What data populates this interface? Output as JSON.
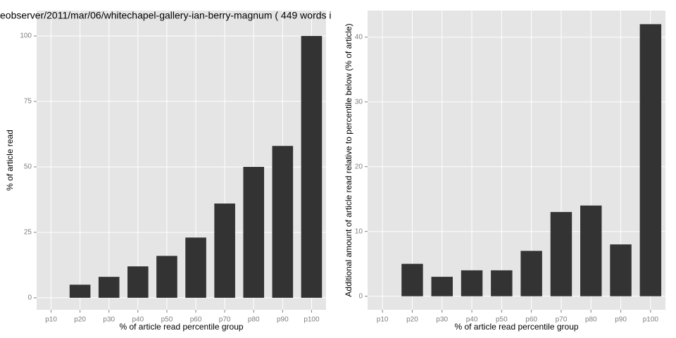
{
  "chart_data": [
    {
      "type": "bar",
      "title": "eobserver/2011/mar/06/whitechapel-gallery-ian-berry-magnum ( 449 words i",
      "x_label": "% of article read percentile group",
      "y_label": "% of article read",
      "categories": [
        "p10",
        "p20",
        "p30",
        "p40",
        "p50",
        "p60",
        "p70",
        "p80",
        "p90",
        "p100"
      ],
      "values": [
        0,
        5,
        8,
        12,
        16,
        23,
        36,
        50,
        58,
        100
      ],
      "color": "#333333",
      "ylim": [
        -4.6,
        109.7
      ],
      "yticks": [
        0,
        25,
        50,
        75,
        100
      ],
      "grid": true
    },
    {
      "type": "bar",
      "x_label": "% of article read percentile group",
      "y_label": "Additional amount of article read relative to percentile below (% of article)",
      "categories": [
        "p10",
        "p20",
        "p30",
        "p40",
        "p50",
        "p60",
        "p70",
        "p80",
        "p90",
        "p100"
      ],
      "values": [
        0,
        5,
        3,
        4,
        4,
        7,
        13,
        14,
        8,
        42
      ],
      "color": "#333333",
      "ylim": [
        -2.1,
        44.1
      ],
      "yticks": [
        0,
        10,
        20,
        30,
        40
      ],
      "grid": true
    }
  ]
}
